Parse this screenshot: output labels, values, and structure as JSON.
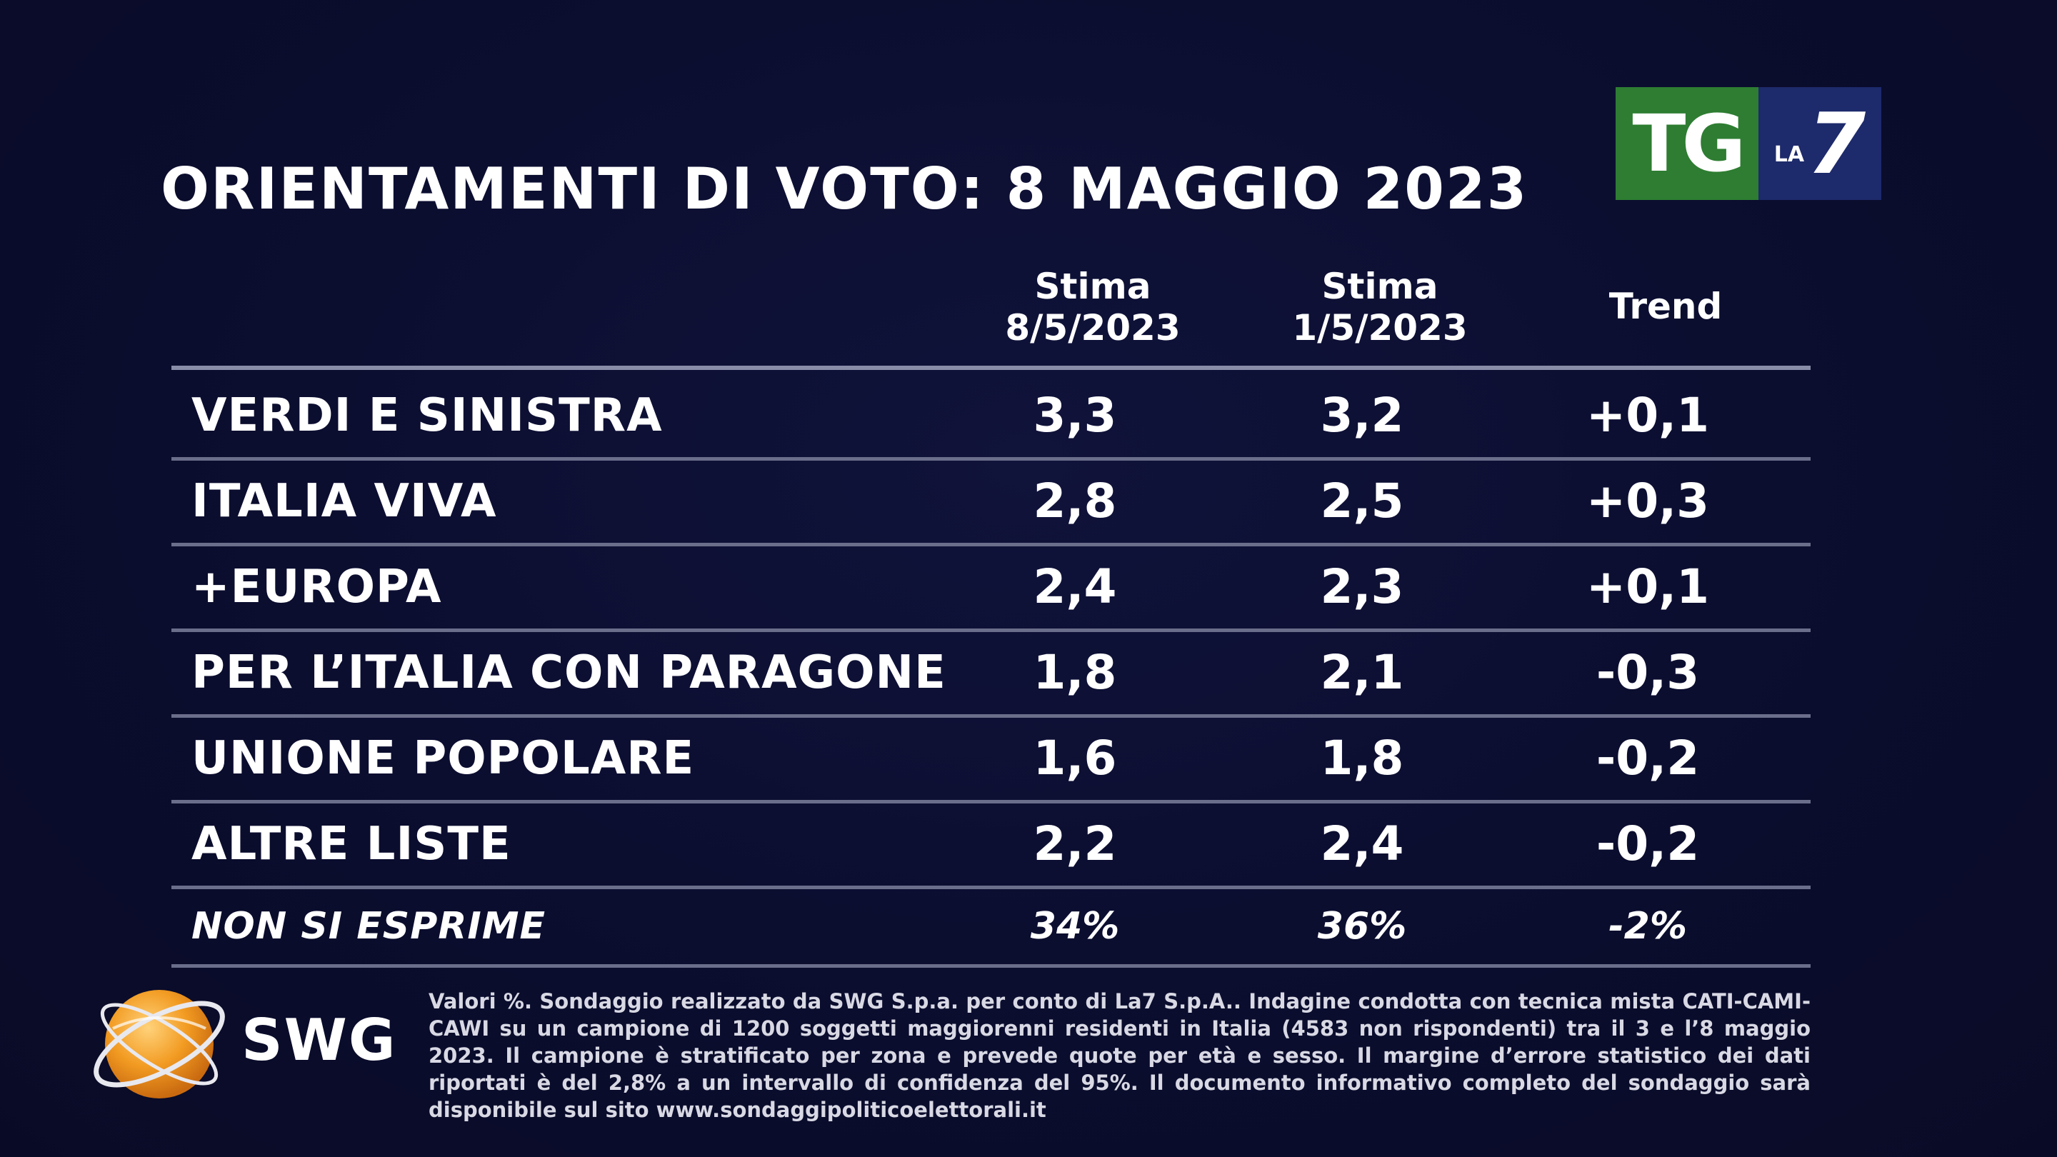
{
  "title": "ORIENTAMENTI DI VOTO: 8 MAGGIO 2023",
  "logo": {
    "tg": "TG",
    "la": "LA",
    "seven": "7",
    "tg_color": "#2e7d32",
    "la7_color": "#1d2a6b"
  },
  "chart_data": {
    "type": "table",
    "title": "ORIENTAMENTI DI VOTO: 8 MAGGIO 2023",
    "columns": [
      {
        "line1": "Stima",
        "line2": "8/5/2023"
      },
      {
        "line1": "Stima",
        "line2": "1/5/2023"
      },
      {
        "line1": "Trend",
        "line2": ""
      }
    ],
    "rows": [
      {
        "name": "VERDI E SINISTRA",
        "v1": "3,3",
        "v2": "3,2",
        "trend": "+0,1"
      },
      {
        "name": "ITALIA VIVA",
        "v1": "2,8",
        "v2": "2,5",
        "trend": "+0,3"
      },
      {
        "name": "+EUROPA",
        "v1": "2,4",
        "v2": "2,3",
        "trend": "+0,1"
      },
      {
        "name": "PER L’ITALIA CON PARAGONE",
        "v1": "1,8",
        "v2": "2,1",
        "trend": "-0,3"
      },
      {
        "name": "UNIONE POPOLARE",
        "v1": "1,6",
        "v2": "1,8",
        "trend": "-0,2"
      },
      {
        "name": "ALTRE LISTE",
        "v1": "2,2",
        "v2": "2,4",
        "trend": "-0,2"
      },
      {
        "name": "NON SI ESPRIME",
        "v1": "34%",
        "v2": "36%",
        "trend": "-2%"
      }
    ]
  },
  "swg": {
    "word": "SWG"
  },
  "footnote": "Valori %. Sondaggio realizzato da SWG S.p.a. per conto di La7 S.p.A.. Indagine condotta con tecnica mista CATI-CAMI-CAWI su un campione di 1200 soggetti maggiorenni residenti in Italia (4583 non rispondenti) tra il 3 e l’8 maggio 2023. Il campione è stratificato per zona e prevede quote per età e sesso. Il margine d’errore statistico dei dati riportati è del 2,8% a un intervallo di confidenza del 95%. Il documento informativo completo del sondaggio sarà disponibile sul sito www.sondaggipoliticoelettorali.it"
}
